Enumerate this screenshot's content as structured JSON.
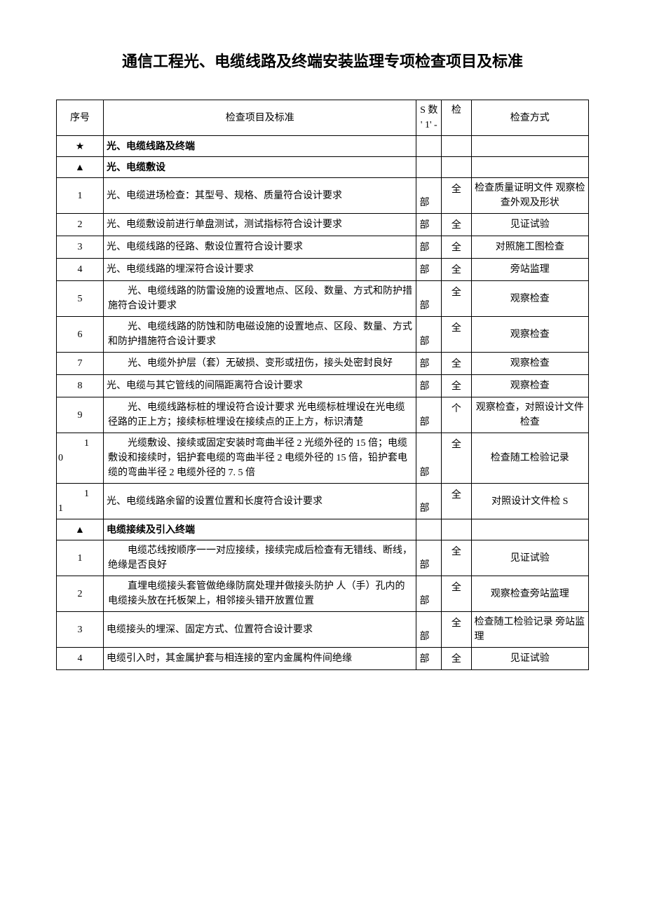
{
  "title": "通信工程光、电缆线路及终端安装监理专项检查项目及标准",
  "header": {
    "seq": "序号",
    "content": "检查项目及标准",
    "count_line1": "S 数",
    "count_line2": "' 1' -",
    "count_top": "检",
    "method": "检查方式"
  },
  "sections": [
    {
      "marker": "★",
      "heading": "光、电缆线路及终端"
    },
    {
      "marker": "▲",
      "heading": "光、电缆敷设",
      "rows": [
        {
          "seq": "1",
          "content": "光、电缆进场检查：其型号、规格、质量符合设计要求",
          "unit": "部",
          "val": "全",
          "method": "检查质量证明文件 观察检查外观及形状"
        },
        {
          "seq": "2",
          "content": "光、电缆敷设前进行单盘测试，测试指标符合设计要求",
          "unit": "部",
          "val": "全",
          "method": "见证试验"
        },
        {
          "seq": "3",
          "content": "光、电缆线路的径路、敷设位置符合设计要求",
          "unit": "部",
          "val": "全",
          "method": "对照施工图检查"
        },
        {
          "seq": "4",
          "content": "光、电缆线路的埋深符合设计要求",
          "unit": "部",
          "val": "全",
          "method": "旁站监理"
        },
        {
          "seq": "5",
          "content": "光、电缆线路的防雷设施的设置地点、区段、数量、方式和防护措施符合设计要求",
          "unit": "部",
          "val": "全",
          "method": "观察检查",
          "wrap": true
        },
        {
          "seq": "6",
          "content": "光、电缆线路的防蚀和防电磁设施的设置地点、区段、数量、方式和防护措施符合设计要求",
          "unit": "部",
          "val": "全",
          "method": "观察检查",
          "wrap": true
        },
        {
          "seq": "7",
          "content": "光、电缆外护层（套）无破损、变形或扭伤，接头处密封良好",
          "unit": "部",
          "val": "全",
          "method": "观察检查",
          "wrap": true
        },
        {
          "seq": "8",
          "content": "光、电缆与其它管线的间隔距离符合设计要求",
          "unit": "部",
          "val": "全",
          "method": "观察检查"
        },
        {
          "seq": "9",
          "content": "光、电缆线路标桩的埋设符合设计要求 光电缆标桩埋设在光电缆径路的正上方；接续标桩埋设在接续点的正上方，标识清楚",
          "unit": "部",
          "val": "个",
          "method": "观察检查，对照设计文件检查",
          "wrap": true
        },
        {
          "seq_prefix": "0",
          "seq": "1",
          "content": "光缆敷设、接续或固定安装时弯曲半径 2 光缆外径的 15 倍；电缆敷设和接续时，铝护套电缆的弯曲半径 2 电缆外径的 15 倍，铅护套电缆的弯曲半径 2 电缆外径的 7. 5 倍",
          "unit": "部",
          "val": "全",
          "method": "检查随工检验记录",
          "wrap": true
        },
        {
          "seq_prefix": "1",
          "seq": "1",
          "content": "光、电缆线路余留的设置位置和长度符合设计要求",
          "unit": "部",
          "val": "全",
          "method": "对照设计文件检 S"
        }
      ]
    },
    {
      "marker": "▲",
      "heading": "电缆接续及引入终端",
      "rows": [
        {
          "seq": "1",
          "content": "电缆芯线按顺序一一对应接续，接续完成后检查有无错线、断线，绝缘是否良好",
          "unit": "部",
          "val": "全",
          "method": "见证试验",
          "wrap": true
        },
        {
          "seq": "2",
          "content": "直埋电缆接头套管做绝缘防腐处理并做接头防护 人（手）孔内的电缆接头放在托板架上，相邻接头错开放置位置",
          "unit": "部",
          "val": "全",
          "method": "观察检查旁站监理",
          "wrap": true
        },
        {
          "seq": "3",
          "content": "电缆接头的埋深、固定方式、位置符合设计要求",
          "unit": "部",
          "val": "全",
          "method": "检查随工检验记录 旁站监理",
          "method_align": "left"
        },
        {
          "seq": "4",
          "content": "电缆引入时，其金属护套与相连接的室内金属构件间绝缘",
          "unit": "部",
          "val": "全",
          "method": "见证试验"
        }
      ]
    }
  ]
}
